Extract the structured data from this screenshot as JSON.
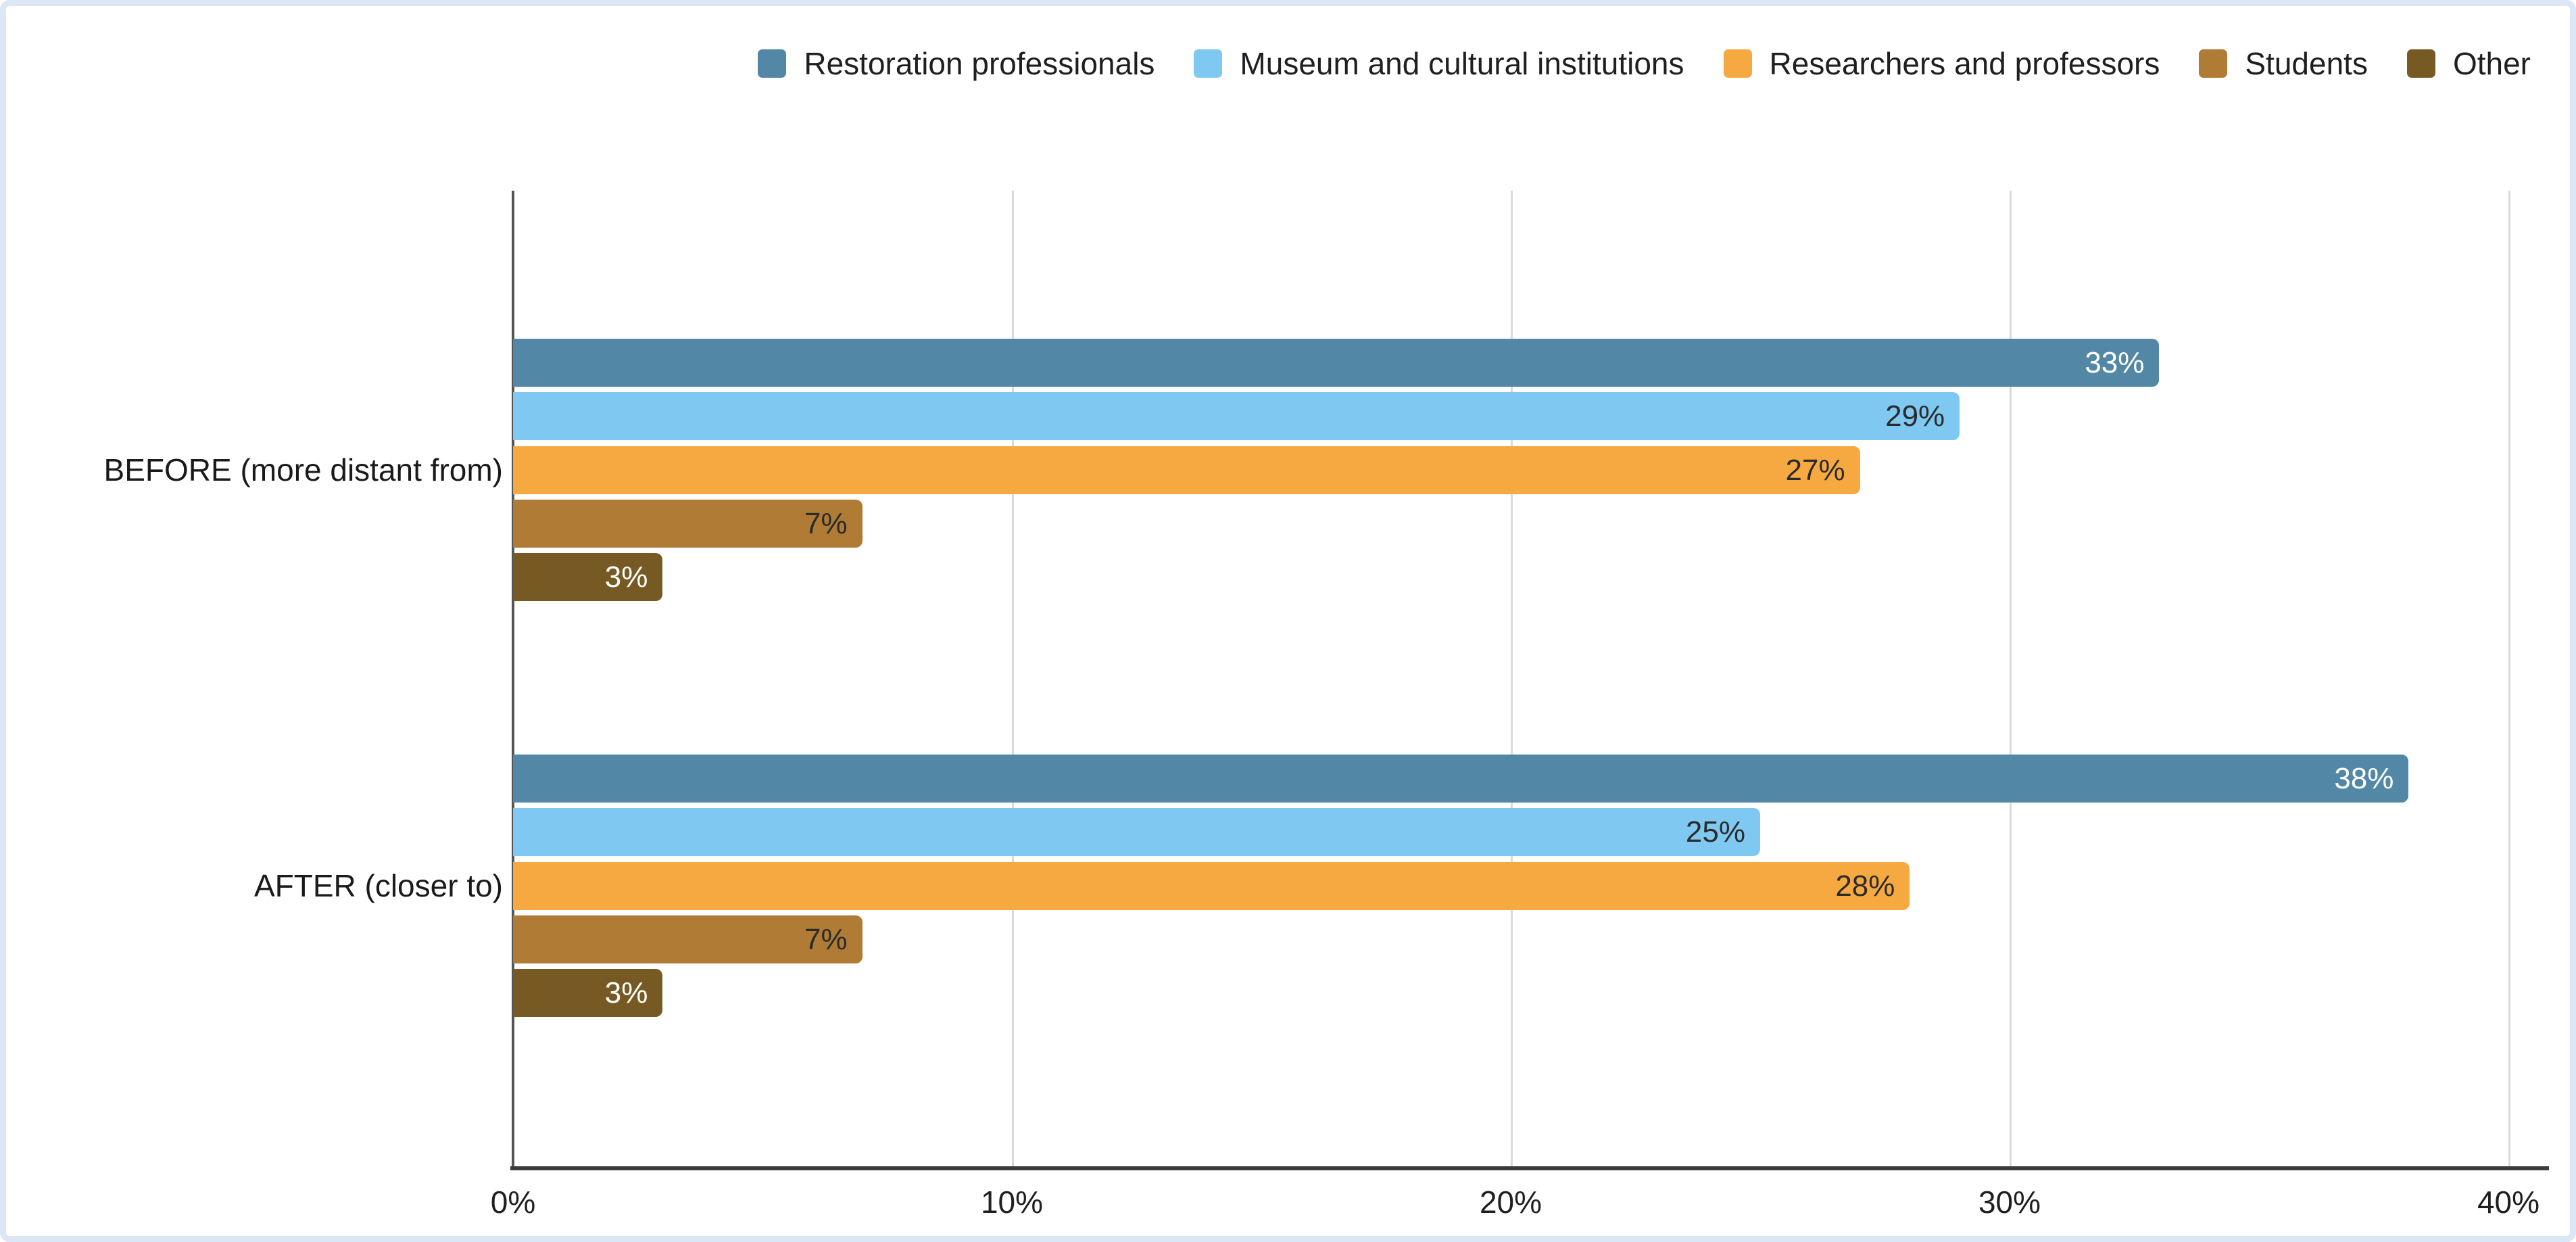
{
  "chart_data": {
    "type": "bar",
    "orientation": "horizontal",
    "title": "",
    "categories": [
      "BEFORE (more distant from)",
      "AFTER (closer to)"
    ],
    "series": [
      {
        "name": "Restoration professionals",
        "color": "#5288A6",
        "label_color": "#ffffff",
        "values": [
          33,
          38
        ]
      },
      {
        "name": "Museum and cultural institutions",
        "color": "#7FC8F1",
        "label_color": "#2b2b2b",
        "values": [
          29,
          25
        ]
      },
      {
        "name": "Researchers and professors",
        "color": "#F7A941",
        "label_color": "#2b2b2b",
        "values": [
          27,
          28
        ]
      },
      {
        "name": "Students",
        "color": "#AF7B35",
        "label_color": "#2b2b2b",
        "values": [
          7,
          7
        ]
      },
      {
        "name": "Other",
        "color": "#775A23",
        "label_color": "#ffffff",
        "values": [
          3,
          3
        ]
      }
    ],
    "value_suffix": "%",
    "x_ticks": [
      "0%",
      "10%",
      "20%",
      "30%",
      "40%"
    ],
    "xlim": [
      0,
      40
    ],
    "grid": true,
    "legend_position": "top"
  }
}
